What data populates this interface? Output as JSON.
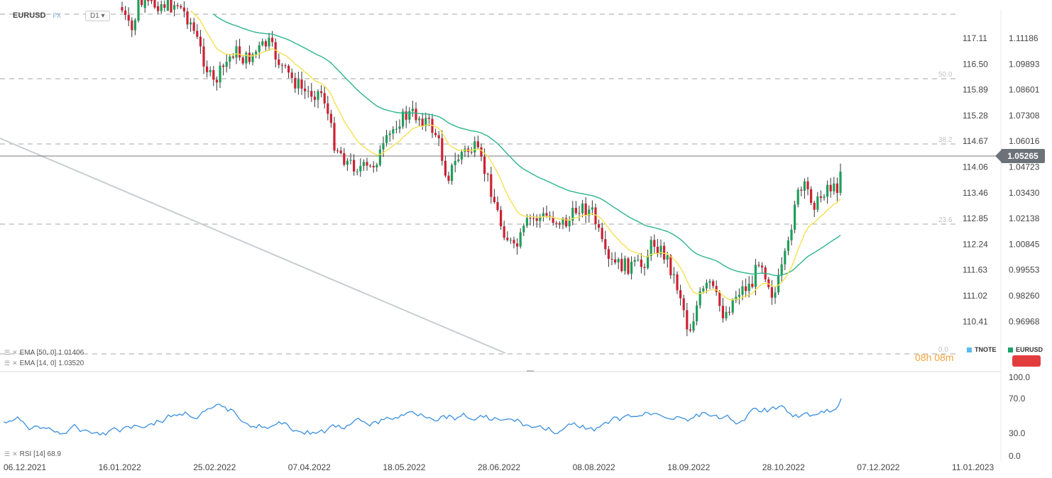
{
  "header": {
    "symbol": "EURUSD",
    "source": "FX",
    "timeframe": "D1",
    "timeframe_caret": "▾"
  },
  "indicators": {
    "ema50": "EMA [50, 0] 1.01406",
    "ema14": "EMA [14, 0] 1.03520",
    "rsi": "RSI [14] 68.9"
  },
  "legend": {
    "series1": "TNOTE",
    "series2": "EURUSD",
    "color1": "#5bb8f0",
    "color2": "#1aa36b"
  },
  "timer": "08h 08m",
  "current_price": "1.05265",
  "colors": {
    "up": "#1f9e5a",
    "down": "#cc2233",
    "ema14": "#f5e050",
    "ema50": "#2bb58c",
    "rsi": "#3a8fe0",
    "trend": "#c9cdd1"
  },
  "chart_data": {
    "type": "candlestick",
    "x_ticks": [
      "06.12.2021",
      "16.01.2022",
      "25.02.2022",
      "07.04.2022",
      "18.05.2022",
      "28.06.2022",
      "08.08.2022",
      "18.09.2022",
      "28.10.2022",
      "07.12.2022",
      "11.01.2023"
    ],
    "y_left_ticks": [
      "117.11",
      "116.50",
      "115.89",
      "115.28",
      "114.67",
      "114.06",
      "113.46",
      "112.85",
      "112.24",
      "111.63",
      "111.02",
      "110.41"
    ],
    "y_right_ticks": [
      "1.11186",
      "1.09893",
      "1.08601",
      "1.07308",
      "1.06016",
      "1.04723",
      "1.03430",
      "1.02138",
      "1.00845",
      "0.99553",
      "0.98260",
      "0.96968"
    ],
    "fib_levels": [
      "50.0",
      "38.2",
      "23.6",
      "0.0"
    ],
    "rsi_ticks": [
      "100.0",
      "70.0",
      "30.0",
      "0.0"
    ],
    "last_close": 1.05265,
    "ema50_last": 1.01406,
    "ema14_last": 1.0352,
    "rsi_last": 68.9
  }
}
